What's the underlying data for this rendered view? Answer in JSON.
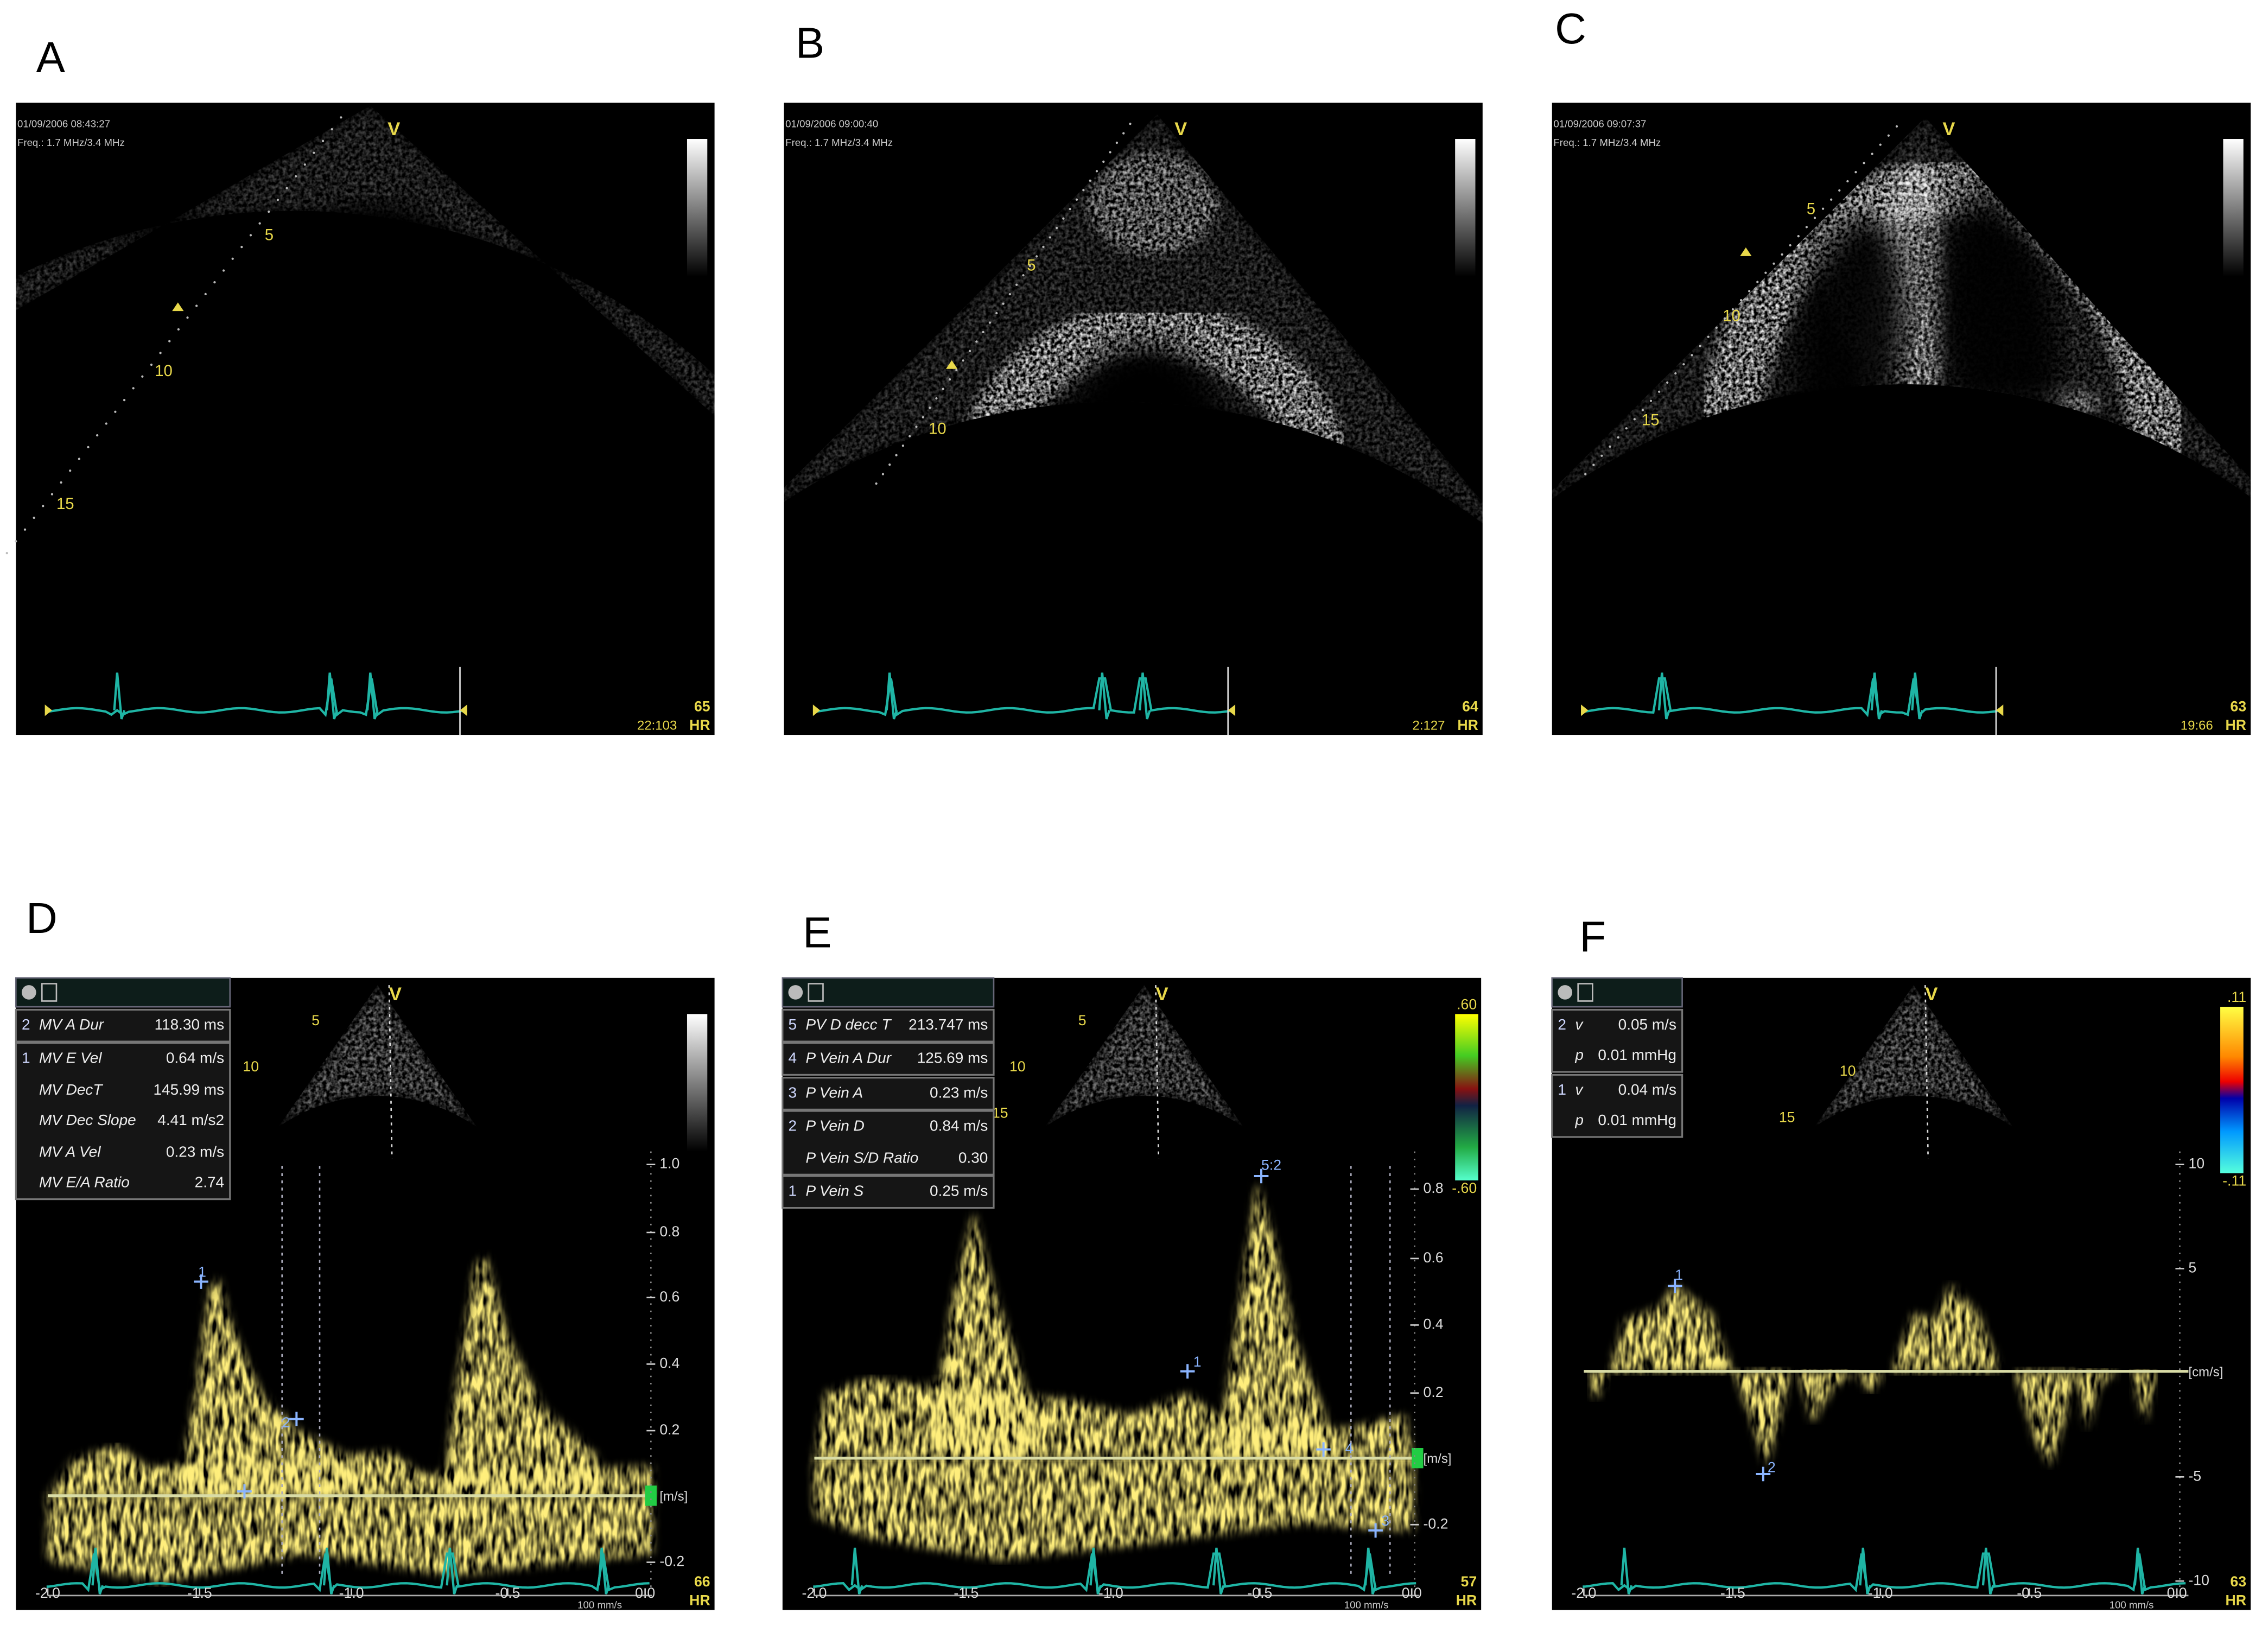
{
  "figure": {
    "echo_panels": [
      {
        "letter": "A",
        "timestamp": "01/09/2006 08:43:27",
        "frequency": "Freq.: 1.7 MHz/3.4 MHz",
        "orientation": "V",
        "depth_marks": [
          "5",
          "10",
          "15"
        ],
        "frame": "22:103",
        "heart_rate": "65",
        "hr_label": "HR"
      },
      {
        "letter": "B",
        "timestamp": "01/09/2006 09:00:40",
        "frequency": "Freq.: 1.7 MHz/3.4 MHz",
        "orientation": "V",
        "depth_marks": [
          "5",
          "10"
        ],
        "frame": "2:127",
        "heart_rate": "64",
        "hr_label": "HR"
      },
      {
        "letter": "C",
        "timestamp": "01/09/2006 09:07:37",
        "frequency": "Freq.: 1.7 MHz/3.4 MHz",
        "orientation": "V",
        "depth_marks": [
          "5",
          "10",
          "15"
        ],
        "frame": "19:66",
        "heart_rate": "63",
        "hr_label": "HR"
      }
    ],
    "doppler_panels": [
      {
        "letter": "D",
        "orientation": "V",
        "thumbnail_depth_marks": [
          "5",
          "10"
        ],
        "measurements": [
          {
            "index": "2",
            "label": "MV A Dur",
            "value": "118.30 ms"
          },
          {
            "index": "1",
            "label": "MV E Vel",
            "value": "0.64 m/s"
          },
          {
            "label": "MV DecT",
            "value": "145.99 ms"
          },
          {
            "label": "MV Dec Slope",
            "value": "4.41 m/s2"
          },
          {
            "label": "MV A Vel",
            "value": "0.23 m/s"
          },
          {
            "label": "MV E/A Ratio",
            "value": "2.74"
          }
        ],
        "y_ticks": [
          "1.0",
          "0.8",
          "0.6",
          "0.4",
          "0.2",
          "-0.2"
        ],
        "unit": "[m/s]",
        "x_ticks": [
          "-2.0",
          "-1.5",
          "-1.0",
          "-0.5",
          "0.0"
        ],
        "sweep": "100 mm/s",
        "heart_rate": "66",
        "hr_label": "HR",
        "markers": [
          "1",
          "2"
        ]
      },
      {
        "letter": "E",
        "orientation": "V",
        "thumbnail_depth_marks": [
          "5",
          "10",
          "15"
        ],
        "measurements": [
          {
            "index": "5",
            "label": "PV D decc T",
            "value": "213.747 ms"
          },
          {
            "index": "4",
            "label": "P Vein A Dur",
            "value": "125.69 ms"
          },
          {
            "index": "3",
            "label": "P Vein A",
            "value": "0.23 m/s"
          },
          {
            "index": "2",
            "label": "P Vein D",
            "value": "0.84 m/s"
          },
          {
            "label": "P Vein S/D Ratio",
            "value": "0.30"
          },
          {
            "index": "1",
            "label": "P Vein S",
            "value": "0.25 m/s"
          }
        ],
        "color_bar": [
          ".60",
          "-.60"
        ],
        "y_ticks": [
          "0.8",
          "0.6",
          "0.4",
          "0.2",
          "-0.2"
        ],
        "unit": "[m/s]",
        "x_ticks": [
          "-2.0",
          "-1.5",
          "-1.0",
          "-0.5",
          "0.0"
        ],
        "sweep": "100 mm/s",
        "heart_rate": "57",
        "hr_label": "HR",
        "markers": [
          "1",
          "5:2",
          "4",
          "3"
        ]
      },
      {
        "letter": "F",
        "orientation": "V",
        "thumbnail_depth_marks": [
          "10",
          "15"
        ],
        "measurements": [
          {
            "index": "2",
            "label": "v",
            "value": "0.05 m/s"
          },
          {
            "label": "p",
            "value": "0.01 mmHg"
          },
          {
            "index": "1",
            "label": "v",
            "value": "0.04 m/s"
          },
          {
            "label": "p",
            "value": "0.01 mmHg"
          }
        ],
        "color_bar": [
          ".11",
          "-.11"
        ],
        "y_ticks": [
          "10",
          "5",
          "-5",
          "-10"
        ],
        "unit": "[cm/s]",
        "x_ticks": [
          "-2.0",
          "-1.5",
          "-1.0",
          "-0.5",
          "0.0"
        ],
        "sweep": "100 mm/s",
        "heart_rate": "63",
        "hr_label": "HR",
        "markers": [
          "1",
          "2"
        ]
      }
    ]
  }
}
